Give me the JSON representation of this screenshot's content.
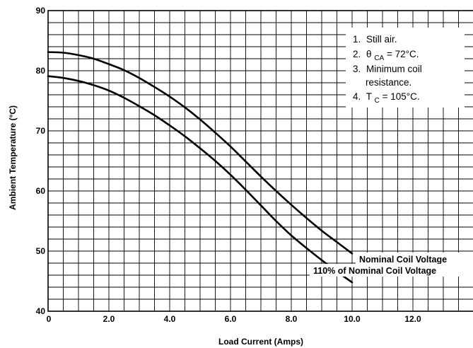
{
  "chart_data": {
    "type": "line",
    "xlabel": "Load Current (Amps)",
    "ylabel": "Ambient Temperature (°C)",
    "xlim": [
      0,
      14
    ],
    "ylim": [
      40,
      90
    ],
    "x_ticks": [
      {
        "value": 0,
        "label": "0"
      },
      {
        "value": 2,
        "label": "2.0"
      },
      {
        "value": 4,
        "label": "4.0"
      },
      {
        "value": 6,
        "label": "6.0"
      },
      {
        "value": 8,
        "label": "8.0"
      },
      {
        "value": 10,
        "label": "10.0"
      },
      {
        "value": 12,
        "label": "12.0"
      }
    ],
    "y_ticks": [
      {
        "value": 40,
        "label": "40"
      },
      {
        "value": 50,
        "label": "50"
      },
      {
        "value": 60,
        "label": "60"
      },
      {
        "value": 70,
        "label": "70"
      },
      {
        "value": 80,
        "label": "80"
      },
      {
        "value": 90,
        "label": "90"
      }
    ],
    "grid": true,
    "grid_minor_x": 0.5,
    "grid_minor_y": 2,
    "series": [
      {
        "name": "Nominal Coil Voltage",
        "x": [
          0,
          0.5,
          1,
          1.5,
          2,
          2.5,
          3,
          3.5,
          4,
          4.5,
          5,
          5.5,
          6,
          6.5,
          7,
          7.5,
          8,
          8.5,
          9,
          9.5,
          10
        ],
        "y": [
          83.1,
          83.0,
          82.6,
          82.0,
          81.1,
          80.1,
          78.8,
          77.3,
          75.7,
          73.9,
          71.9,
          69.7,
          67.4,
          64.9,
          62.4,
          60.0,
          57.7,
          55.5,
          53.4,
          51.5,
          49.6
        ]
      },
      {
        "name": "110% of Nominal Coil Voltage",
        "x": [
          0,
          0.5,
          1,
          1.5,
          2,
          2.5,
          3,
          3.5,
          4,
          4.5,
          5,
          5.5,
          6,
          6.5,
          7,
          7.5,
          8,
          8.5,
          9,
          9.5,
          10
        ],
        "y": [
          79.1,
          78.8,
          78.3,
          77.6,
          76.7,
          75.5,
          74.1,
          72.6,
          70.9,
          69.1,
          67.1,
          65.0,
          62.7,
          60.2,
          57.6,
          55.0,
          52.6,
          50.5,
          48.5,
          46.6,
          44.8
        ]
      }
    ],
    "notes": [
      {
        "num": "1.",
        "text": "Still air."
      },
      {
        "num": "2.",
        "symbol": "θ",
        "sub": "CA",
        "text": " = 72°C."
      },
      {
        "num": "3.",
        "text": "Minimum coil",
        "text2": "resistance."
      },
      {
        "num": "4.",
        "symbol": "T",
        "sub": "C",
        "text": " = 105°C."
      }
    ],
    "colors": {
      "line": "#000000",
      "grid": "#000000",
      "background": "#ffffff"
    }
  }
}
